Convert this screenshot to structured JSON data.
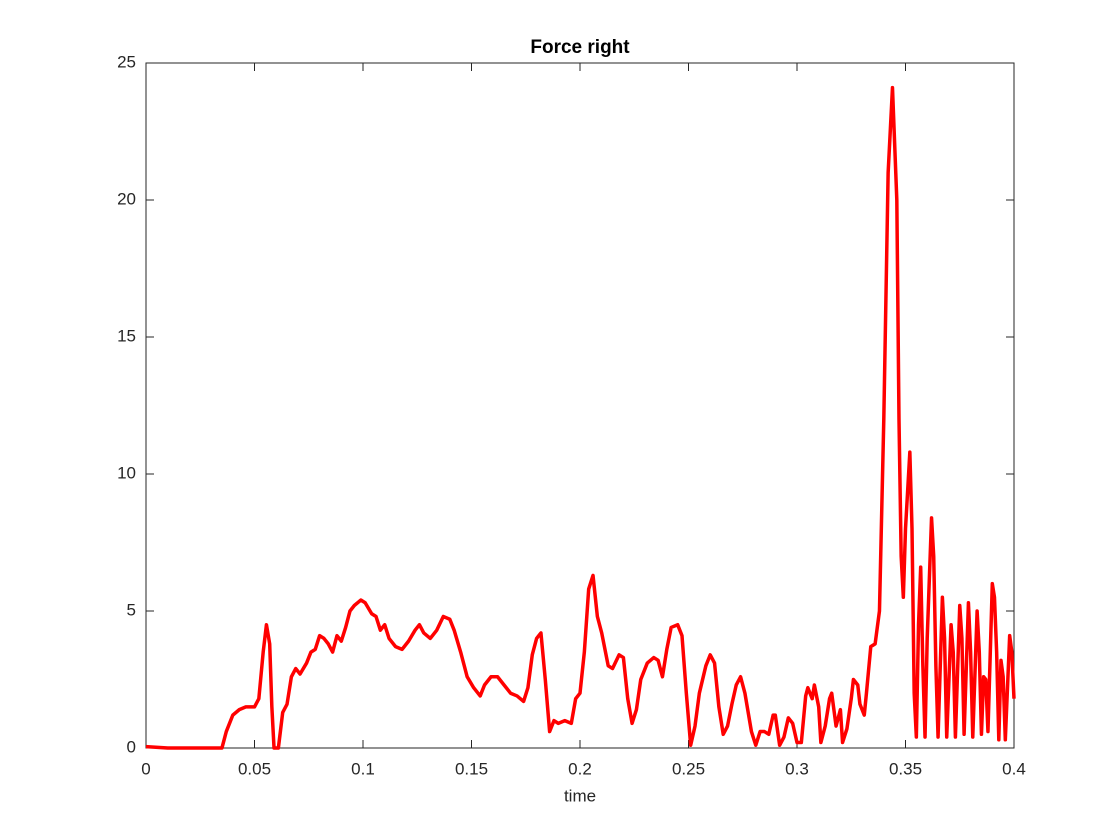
{
  "chart_data": {
    "type": "line",
    "title": "Force right",
    "xlabel": "time",
    "x": [
      0,
      0.01,
      0.035,
      0.037,
      0.04,
      0.043,
      0.046,
      0.05,
      0.052,
      0.054,
      0.0555,
      0.057,
      0.058,
      0.059,
      0.061,
      0.063,
      0.065,
      0.067,
      0.069,
      0.071,
      0.074,
      0.076,
      0.078,
      0.08,
      0.082,
      0.084,
      0.086,
      0.088,
      0.09,
      0.092,
      0.094,
      0.096,
      0.099,
      0.101,
      0.104,
      0.106,
      0.108,
      0.11,
      0.112,
      0.115,
      0.118,
      0.121,
      0.124,
      0.126,
      0.128,
      0.131,
      0.134,
      0.137,
      0.14,
      0.142,
      0.145,
      0.148,
      0.151,
      0.154,
      0.156,
      0.159,
      0.162,
      0.165,
      0.168,
      0.171,
      0.174,
      0.176,
      0.178,
      0.18,
      0.182,
      0.184,
      0.186,
      0.188,
      0.19,
      0.193,
      0.196,
      0.198,
      0.2,
      0.202,
      0.204,
      0.206,
      0.208,
      0.21,
      0.213,
      0.215,
      0.218,
      0.22,
      0.222,
      0.224,
      0.226,
      0.228,
      0.231,
      0.234,
      0.236,
      0.238,
      0.24,
      0.242,
      0.245,
      0.247,
      0.249,
      0.251,
      0.253,
      0.255,
      0.258,
      0.26,
      0.262,
      0.264,
      0.266,
      0.268,
      0.27,
      0.272,
      0.274,
      0.276,
      0.279,
      0.281,
      0.283,
      0.285,
      0.287,
      0.289,
      0.29,
      0.292,
      0.294,
      0.296,
      0.298,
      0.3,
      0.302,
      0.304,
      0.305,
      0.307,
      0.308,
      0.31,
      0.311,
      0.313,
      0.315,
      0.316,
      0.318,
      0.32,
      0.321,
      0.323,
      0.325,
      0.326,
      0.328,
      0.329,
      0.331,
      0.332,
      0.334,
      0.336,
      0.338,
      0.34,
      0.342,
      0.344,
      0.346,
      0.347,
      0.348,
      0.349,
      0.35,
      0.352,
      0.353,
      0.354,
      0.355,
      0.356,
      0.357,
      0.358,
      0.359,
      0.36,
      0.362,
      0.363,
      0.364,
      0.365,
      0.367,
      0.368,
      0.369,
      0.371,
      0.372,
      0.373,
      0.375,
      0.376,
      0.377,
      0.379,
      0.38,
      0.381,
      0.383,
      0.384,
      0.385,
      0.386,
      0.387,
      0.388,
      0.39,
      0.391,
      0.392,
      0.393,
      0.394,
      0.395,
      0.396,
      0.398,
      0.399,
      0.4
    ],
    "series": [
      {
        "color": "#ff0000",
        "values": [
          0.05,
          0,
          0,
          0.6,
          1.2,
          1.4,
          1.5,
          1.5,
          1.8,
          3.5,
          4.5,
          3.8,
          1.5,
          0,
          0,
          1.3,
          1.6,
          2.6,
          2.9,
          2.7,
          3.1,
          3.5,
          3.6,
          4.1,
          4.0,
          3.8,
          3.5,
          4.1,
          3.9,
          4.4,
          5.0,
          5.2,
          5.4,
          5.3,
          4.9,
          4.8,
          4.3,
          4.5,
          4.0,
          3.7,
          3.6,
          3.9,
          4.3,
          4.5,
          4.2,
          4.0,
          4.3,
          4.8,
          4.7,
          4.3,
          3.5,
          2.6,
          2.2,
          1.9,
          2.3,
          2.6,
          2.6,
          2.3,
          2.0,
          1.9,
          1.7,
          2.2,
          3.4,
          4.0,
          4.2,
          2.5,
          0.6,
          1.0,
          0.9,
          1.0,
          0.9,
          1.8,
          2.0,
          3.5,
          5.8,
          6.3,
          4.8,
          4.2,
          3.0,
          2.9,
          3.4,
          3.3,
          1.8,
          0.9,
          1.4,
          2.5,
          3.1,
          3.3,
          3.2,
          2.6,
          3.6,
          4.4,
          4.5,
          4.1,
          2.0,
          0.1,
          0.8,
          2.0,
          3.0,
          3.4,
          3.1,
          1.5,
          0.5,
          0.8,
          1.6,
          2.3,
          2.6,
          2.0,
          0.6,
          0.1,
          0.6,
          0.6,
          0.5,
          1.2,
          1.2,
          0.1,
          0.4,
          1.1,
          0.9,
          0.2,
          0.2,
          1.9,
          2.2,
          1.8,
          2.3,
          1.5,
          0.2,
          0.8,
          1.8,
          2.0,
          0.8,
          1.4,
          0.2,
          0.7,
          1.8,
          2.5,
          2.3,
          1.6,
          1.2,
          2.0,
          3.7,
          3.8,
          5,
          12,
          21,
          24.1,
          20,
          12,
          7,
          5.5,
          8,
          10.8,
          8,
          2,
          0.4,
          4.5,
          6.6,
          3,
          0.4,
          4,
          8.4,
          7,
          3,
          0.4,
          5.5,
          4,
          0.4,
          4.5,
          3.5,
          0.4,
          5.2,
          4,
          0.5,
          5.3,
          3.5,
          0.4,
          5.0,
          3.5,
          0.5,
          2.6,
          2.5,
          0.6,
          6.0,
          5.5,
          3.5,
          0.3,
          3.2,
          2.6,
          0.3,
          4.1,
          3.5,
          1.8
        ]
      }
    ],
    "xlim": [
      0,
      0.4
    ],
    "ylim": [
      0,
      25
    ],
    "xticks": [
      0,
      0.05,
      0.1,
      0.15,
      0.2,
      0.25,
      0.3,
      0.35,
      0.4
    ],
    "yticks": [
      0,
      5,
      10,
      15,
      20,
      25
    ]
  }
}
